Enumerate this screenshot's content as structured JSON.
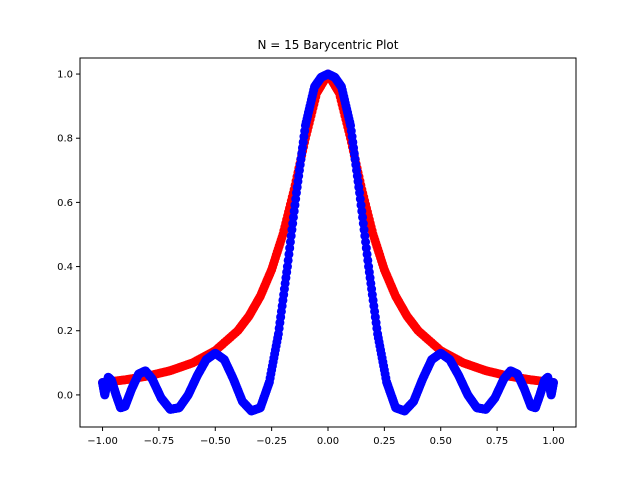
{
  "chart_data": {
    "type": "scatter",
    "title": "N = 15 Barycentric Plot",
    "xlabel": "",
    "ylabel": "",
    "xlim": [
      -1.1,
      1.1
    ],
    "ylim": [
      -0.1,
      1.05
    ],
    "x_ticks": [
      -1.0,
      -0.75,
      -0.5,
      -0.25,
      0.0,
      0.25,
      0.5,
      0.75,
      1.0
    ],
    "x_tick_labels": [
      "−1.00",
      "−0.75",
      "−0.50",
      "−0.25",
      "0.00",
      "0.25",
      "0.50",
      "0.75",
      "1.00"
    ],
    "y_ticks": [
      0.0,
      0.2,
      0.4,
      0.6,
      0.8,
      1.0
    ],
    "y_tick_labels": [
      "0.0",
      "0.2",
      "0.4",
      "0.6",
      "0.8",
      "1.0"
    ],
    "grid": false,
    "legend": "none",
    "series": [
      {
        "color": "#ff0000",
        "marker": "circle",
        "x": [
          -1.0,
          -0.9,
          -0.8,
          -0.7,
          -0.6,
          -0.5,
          -0.4,
          -0.35,
          -0.3,
          -0.25,
          -0.2,
          -0.15,
          -0.1,
          -0.05,
          0.0,
          0.05,
          0.1,
          0.15,
          0.2,
          0.25,
          0.3,
          0.35,
          0.4,
          0.5,
          0.6,
          0.7,
          0.8,
          0.9,
          1.0
        ],
        "y": [
          0.0385,
          0.047,
          0.0588,
          0.0755,
          0.1,
          0.1379,
          0.2,
          0.2462,
          0.3077,
          0.3902,
          0.5,
          0.64,
          0.8,
          0.9412,
          1.0,
          0.9412,
          0.8,
          0.64,
          0.5,
          0.3902,
          0.3077,
          0.2462,
          0.2,
          0.1379,
          0.1,
          0.0755,
          0.0588,
          0.047,
          0.0385
        ]
      },
      {
        "color": "#0000ff",
        "marker": "circle",
        "x": [
          -1.0,
          -0.99,
          -0.975,
          -0.96,
          -0.94,
          -0.92,
          -0.9,
          -0.87,
          -0.84,
          -0.81,
          -0.78,
          -0.74,
          -0.7,
          -0.66,
          -0.62,
          -0.58,
          -0.54,
          -0.5,
          -0.46,
          -0.42,
          -0.38,
          -0.34,
          -0.3,
          -0.26,
          -0.22,
          -0.18,
          -0.14,
          -0.1,
          -0.06,
          -0.03,
          0.0,
          0.03,
          0.06,
          0.1,
          0.14,
          0.18,
          0.22,
          0.26,
          0.3,
          0.34,
          0.38,
          0.42,
          0.46,
          0.5,
          0.54,
          0.58,
          0.62,
          0.66,
          0.7,
          0.74,
          0.78,
          0.81,
          0.84,
          0.87,
          0.9,
          0.92,
          0.94,
          0.96,
          0.975,
          0.99,
          1.0
        ],
        "y": [
          0.0385,
          0.0,
          0.055,
          0.045,
          0.0,
          -0.04,
          -0.035,
          0.02,
          0.065,
          0.075,
          0.05,
          -0.01,
          -0.045,
          -0.04,
          0.0,
          0.06,
          0.11,
          0.13,
          0.11,
          0.05,
          -0.02,
          -0.05,
          -0.04,
          0.04,
          0.19,
          0.4,
          0.63,
          0.84,
          0.96,
          0.99,
          1.0,
          0.99,
          0.96,
          0.84,
          0.63,
          0.4,
          0.19,
          0.04,
          -0.04,
          -0.05,
          -0.02,
          0.05,
          0.11,
          0.13,
          0.11,
          0.06,
          0.0,
          -0.04,
          -0.045,
          -0.01,
          0.05,
          0.075,
          0.065,
          0.02,
          -0.035,
          -0.04,
          0.0,
          0.045,
          0.055,
          0.0,
          0.0385
        ]
      }
    ]
  }
}
